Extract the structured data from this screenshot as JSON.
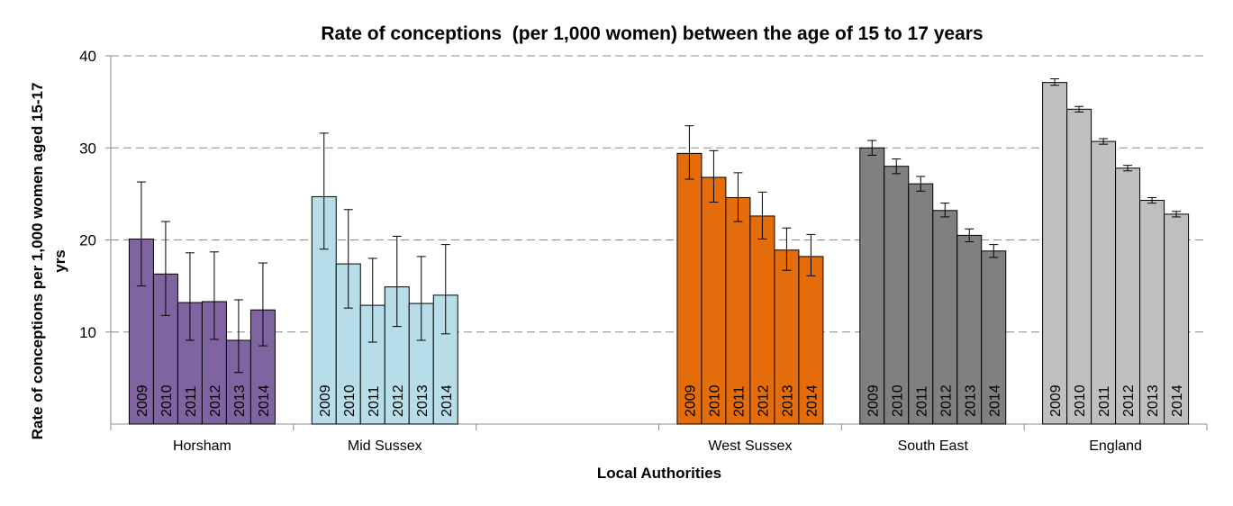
{
  "chart_data": {
    "type": "bar",
    "title": "Rate of conceptions  (per 1,000 women) between the age of 15 to 17 years",
    "xlabel": "Local Authorities",
    "ylabel_line1": "Rate of conceptions per 1,000 women aged 15-17",
    "ylabel_line2": "yrs",
    "ylim": [
      0,
      40
    ],
    "yticks": [
      10,
      20,
      30,
      40
    ],
    "grid": true,
    "categories": [
      "Horsham",
      "Mid Sussex",
      "",
      "West Sussex",
      "South East",
      "England"
    ],
    "series_labels": [
      "2009",
      "2010",
      "2011",
      "2012",
      "2013",
      "2014"
    ],
    "groups": [
      {
        "name": "Horsham",
        "color": "#8064a2",
        "values": [
          20.1,
          16.3,
          13.2,
          13.3,
          9.1,
          12.4
        ],
        "lower": [
          15.0,
          11.8,
          9.1,
          9.2,
          5.6,
          8.5
        ],
        "upper": [
          26.3,
          22.0,
          18.6,
          18.7,
          13.5,
          17.5
        ]
      },
      {
        "name": "Mid Sussex",
        "color": "#b7dde8",
        "values": [
          24.7,
          17.4,
          12.9,
          14.9,
          13.1,
          14.0
        ],
        "lower": [
          19.0,
          12.6,
          8.9,
          10.6,
          9.1,
          9.8
        ],
        "upper": [
          31.6,
          23.3,
          18.0,
          20.4,
          18.2,
          19.5
        ]
      },
      {
        "name": "",
        "color": "#ffffff",
        "values": [],
        "lower": [],
        "upper": []
      },
      {
        "name": "West Sussex",
        "color": "#e46c0a",
        "values": [
          29.4,
          26.8,
          24.6,
          22.6,
          18.9,
          18.2
        ],
        "lower": [
          26.6,
          24.1,
          22.0,
          20.1,
          16.7,
          16.1
        ],
        "upper": [
          32.4,
          29.7,
          27.3,
          25.2,
          21.3,
          20.6
        ]
      },
      {
        "name": "South East",
        "color": "#808080",
        "values": [
          30.0,
          28.0,
          26.1,
          23.2,
          20.5,
          18.8
        ],
        "lower": [
          29.2,
          27.2,
          25.3,
          22.5,
          19.8,
          18.1
        ],
        "upper": [
          30.8,
          28.8,
          26.9,
          24.0,
          21.2,
          19.5
        ]
      },
      {
        "name": "England",
        "color": "#bfbfbf",
        "values": [
          37.1,
          34.2,
          30.7,
          27.8,
          24.3,
          22.8
        ],
        "lower": [
          36.8,
          33.9,
          30.4,
          27.5,
          24.0,
          22.5
        ],
        "upper": [
          37.5,
          34.5,
          31.0,
          28.1,
          24.6,
          23.1
        ]
      }
    ]
  }
}
